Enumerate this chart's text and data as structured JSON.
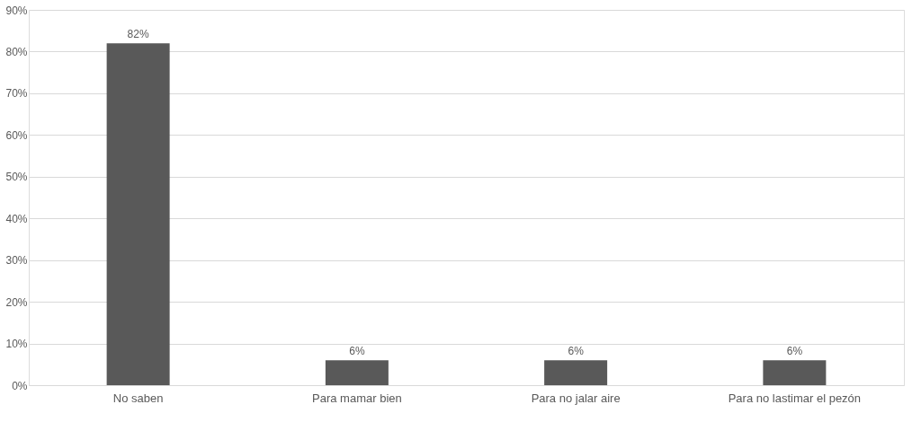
{
  "chart_data": {
    "type": "bar",
    "categories": [
      "No saben",
      "Para mamar bien",
      "Para no jalar aire",
      "Para no lastimar el pezón"
    ],
    "values": [
      82,
      6,
      6,
      6
    ],
    "color": "#595959",
    "value_labels": [
      "82%",
      "6%",
      "6%",
      "6%"
    ],
    "ylim": [
      0,
      90
    ],
    "yticks": [
      {
        "value": 0,
        "label": "0%"
      },
      {
        "value": 10,
        "label": "10%"
      },
      {
        "value": 20,
        "label": "20%"
      },
      {
        "value": 30,
        "label": "30%"
      },
      {
        "value": 40,
        "label": "40%"
      },
      {
        "value": 50,
        "label": "50%"
      },
      {
        "value": 60,
        "label": "60%"
      },
      {
        "value": 70,
        "label": "70%"
      },
      {
        "value": 80,
        "label": "80%"
      },
      {
        "value": 90,
        "label": "90%"
      }
    ],
    "grid": "y"
  }
}
